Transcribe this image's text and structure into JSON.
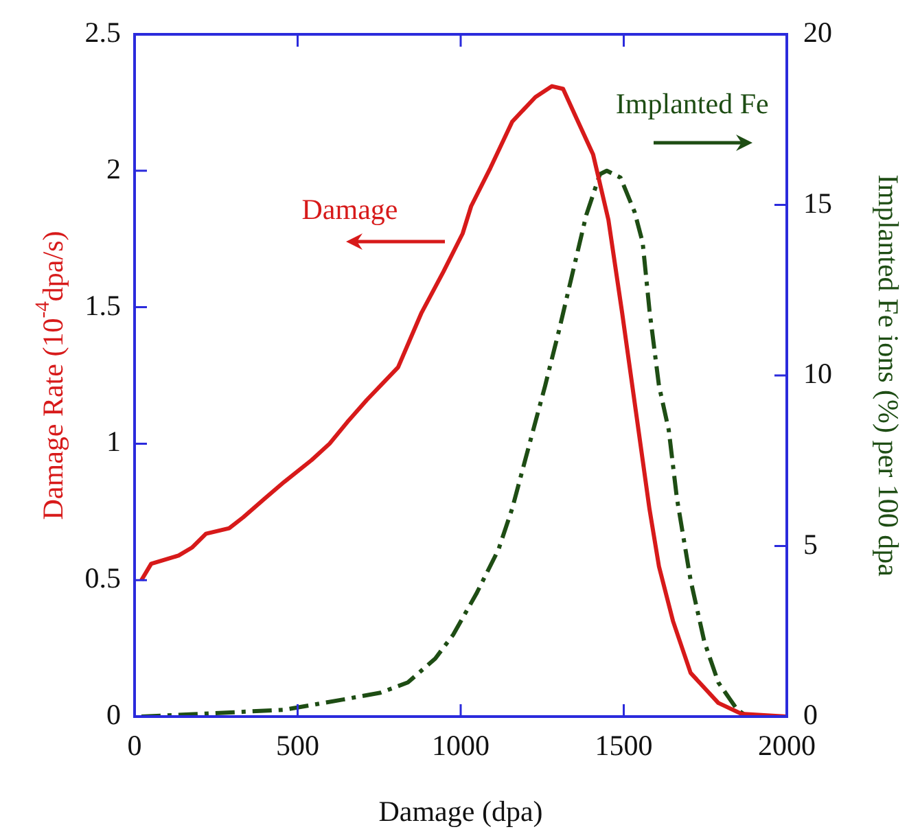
{
  "chart_data": {
    "type": "line",
    "xlabel": "Damage (dpa)",
    "ylabel": "Damage Rate (10$^{-4}$dpa/s)",
    "y2label": "Implanted Fe ions (%) per 100 dpa",
    "xlim": [
      0,
      2000
    ],
    "xticks": [
      0,
      500,
      1000,
      1500,
      2000
    ],
    "ylim": [
      0,
      2.5
    ],
    "yticks": [
      0,
      0.5,
      1,
      1.5,
      2,
      2.5
    ],
    "y2lim": [
      0,
      20
    ],
    "y2ticks": [
      0,
      5,
      10,
      15,
      20
    ],
    "grid": false,
    "legend": false,
    "marker": "none",
    "annotations": [
      "Damage",
      "Implanted Fe"
    ],
    "series": [
      {
        "color": "#d71a1a",
        "line_style": "solid",
        "x": [
          21,
          51,
          135,
          177,
          219,
          290,
          333,
          400,
          459,
          543,
          598,
          653,
          712,
          808,
          880,
          947,
          1006,
          1032,
          1091,
          1158,
          1229,
          1280,
          1314,
          1356,
          1406,
          1453,
          1495,
          1537,
          1579,
          1608,
          1651,
          1705,
          1790,
          1861,
          2000
        ],
        "values": [
          0.5,
          0.56,
          0.59,
          0.62,
          0.67,
          0.69,
          0.73,
          0.8,
          0.86,
          0.94,
          1.0,
          1.08,
          1.16,
          1.28,
          1.48,
          1.63,
          1.77,
          1.87,
          2.01,
          2.18,
          2.27,
          2.31,
          2.3,
          2.19,
          2.06,
          1.82,
          1.48,
          1.12,
          0.76,
          0.55,
          0.35,
          0.16,
          0.05,
          0.01,
          0
        ]
      },
      {
        "color": "#1e4d14",
        "line_style": "dashed",
        "axis": "y2",
        "x": [
          21,
          248,
          459,
          640,
          754,
          838,
          922,
          977,
          1048,
          1116,
          1158,
          1200,
          1259,
          1301,
          1343,
          1385,
          1427,
          1448,
          1490,
          1533,
          1558,
          1579,
          1608,
          1638,
          1663,
          1705,
          1747,
          1790,
          1848,
          1880,
          2000
        ],
        "values": [
          0,
          0.1,
          0.2,
          0.5,
          0.7,
          1.0,
          1.7,
          2.4,
          3.6,
          4.9,
          6.1,
          7.6,
          9.7,
          11.3,
          13.0,
          14.7,
          15.9,
          16.0,
          15.8,
          14.8,
          13.9,
          11.9,
          9.7,
          8.4,
          6.4,
          4.0,
          2.2,
          1.0,
          0.2,
          0,
          0
        ]
      }
    ]
  }
}
